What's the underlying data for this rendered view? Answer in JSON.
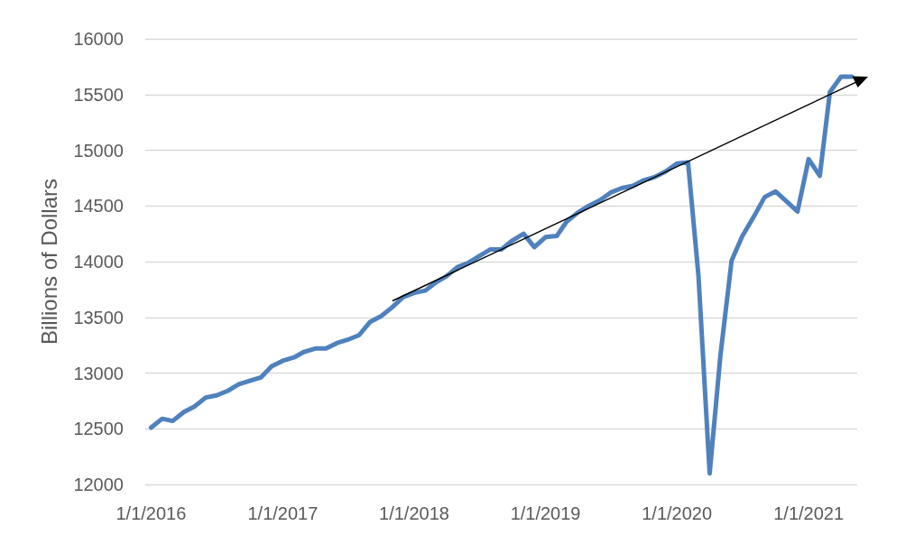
{
  "chart_data": {
    "type": "line",
    "ylabel": "Billions of Dollars",
    "x": [
      "2016-01",
      "2016-02",
      "2016-03",
      "2016-04",
      "2016-05",
      "2016-06",
      "2016-07",
      "2016-08",
      "2016-09",
      "2016-10",
      "2016-11",
      "2016-12",
      "2017-01",
      "2017-02",
      "2017-03",
      "2017-04",
      "2017-05",
      "2017-06",
      "2017-07",
      "2017-08",
      "2017-09",
      "2017-10",
      "2017-11",
      "2017-12",
      "2018-01",
      "2018-02",
      "2018-03",
      "2018-04",
      "2018-05",
      "2018-06",
      "2018-07",
      "2018-08",
      "2018-09",
      "2018-10",
      "2018-11",
      "2018-12",
      "2019-01",
      "2019-02",
      "2019-03",
      "2019-04",
      "2019-05",
      "2019-06",
      "2019-07",
      "2019-08",
      "2019-09",
      "2019-10",
      "2019-11",
      "2019-12",
      "2020-01",
      "2020-02",
      "2020-03",
      "2020-04",
      "2020-05",
      "2020-06",
      "2020-07",
      "2020-08",
      "2020-09",
      "2020-10",
      "2020-11",
      "2020-12",
      "2021-01",
      "2021-02",
      "2021-03",
      "2021-04",
      "2021-05"
    ],
    "series": [
      {
        "color": "#4f81bd",
        "values": [
          12510,
          12590,
          12570,
          12650,
          12700,
          12780,
          12800,
          12840,
          12900,
          12930,
          12960,
          13060,
          13110,
          13140,
          13190,
          13220,
          13220,
          13270,
          13300,
          13340,
          13460,
          13510,
          13590,
          13680,
          13720,
          13740,
          13810,
          13870,
          13950,
          13990,
          14050,
          14110,
          14110,
          14190,
          14250,
          14130,
          14220,
          14230,
          14360,
          14440,
          14500,
          14550,
          14620,
          14660,
          14680,
          14730,
          14760,
          14810,
          14880,
          14890,
          13870,
          12100,
          13160,
          14010,
          14230,
          14400,
          14580,
          14630,
          14540,
          14450,
          14920,
          14770,
          15520,
          15660,
          15660
        ]
      }
    ],
    "xlim": [
      "2015-12-16",
      "2021-05-16"
    ],
    "xticks": [
      {
        "value": "2016-01-01",
        "label": "1/1/2016"
      },
      {
        "value": "2017-01-01",
        "label": "1/1/2017"
      },
      {
        "value": "2018-01-01",
        "label": "1/1/2018"
      },
      {
        "value": "2019-01-01",
        "label": "1/1/2019"
      },
      {
        "value": "2020-01-01",
        "label": "1/1/2020"
      },
      {
        "value": "2021-01-01",
        "label": "1/1/2021"
      }
    ],
    "ylim": [
      12000,
      16000
    ],
    "yticks": [
      12000,
      12500,
      13000,
      13500,
      14000,
      14500,
      15000,
      15500,
      16000
    ],
    "grid": "y"
  }
}
